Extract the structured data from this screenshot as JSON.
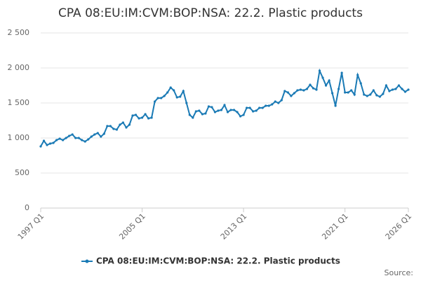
{
  "chart_data": {
    "type": "line",
    "title": "CPA 08:EU:IM:CVM:BOP:NSA: 22.2. Plastic products",
    "source": "Source:",
    "categories": [
      "1997 Q1",
      null,
      null,
      null,
      null,
      null,
      null,
      null,
      null,
      null,
      null,
      null,
      null,
      null,
      null,
      null,
      null,
      null,
      null,
      null,
      null,
      null,
      null,
      null,
      null,
      null,
      null,
      null,
      null,
      null,
      null,
      null,
      "2005 Q1",
      null,
      null,
      null,
      null,
      null,
      null,
      null,
      null,
      null,
      null,
      null,
      null,
      null,
      null,
      null,
      null,
      null,
      null,
      null,
      null,
      null,
      null,
      null,
      null,
      null,
      null,
      null,
      null,
      null,
      null,
      null,
      "2013 Q1",
      null,
      null,
      null,
      null,
      null,
      null,
      null,
      null,
      null,
      null,
      null,
      null,
      null,
      null,
      null,
      null,
      null,
      null,
      null,
      null,
      null,
      null,
      null,
      null,
      null,
      null,
      null,
      null,
      null,
      null,
      null,
      "2021 Q1",
      null,
      null,
      null,
      null,
      null,
      null,
      null,
      null,
      null,
      null,
      null,
      null,
      null,
      null,
      null,
      null,
      null,
      null,
      null,
      "2026 Q1"
    ],
    "series": [
      {
        "name": "CPA 08:EU:IM:CVM:BOP:NSA: 22.2. Plastic products",
        "color": "#1a7ab5",
        "values": [
          880,
          960,
          900,
          920,
          930,
          970,
          990,
          970,
          1000,
          1030,
          1050,
          1000,
          1000,
          970,
          950,
          980,
          1020,
          1050,
          1070,
          1020,
          1060,
          1170,
          1170,
          1130,
          1120,
          1190,
          1220,
          1150,
          1190,
          1320,
          1330,
          1280,
          1290,
          1340,
          1280,
          1290,
          1520,
          1570,
          1570,
          1600,
          1650,
          1720,
          1680,
          1580,
          1590,
          1670,
          1500,
          1330,
          1290,
          1380,
          1390,
          1340,
          1350,
          1450,
          1440,
          1370,
          1390,
          1400,
          1470,
          1370,
          1400,
          1400,
          1370,
          1310,
          1330,
          1430,
          1430,
          1380,
          1390,
          1430,
          1430,
          1460,
          1460,
          1480,
          1520,
          1500,
          1540,
          1670,
          1650,
          1600,
          1640,
          1680,
          1690,
          1680,
          1700,
          1760,
          1710,
          1690,
          1960,
          1860,
          1750,
          1820,
          1640,
          1460,
          1700,
          1930,
          1650,
          1650,
          1680,
          1620,
          1900,
          1780,
          1620,
          1600,
          1620,
          1680,
          1610,
          1590,
          1630,
          1750,
          1670,
          1690,
          1700,
          1750,
          1700,
          1660,
          1690
        ]
      }
    ],
    "ylim": [
      0,
      2500
    ],
    "yticks": [
      0,
      500,
      {
        "value": 1000,
        "label": "1 000"
      },
      {
        "value": 1500,
        "label": "1 500"
      },
      {
        "value": 2000,
        "label": "2 000"
      },
      {
        "value": 2500,
        "label": "2 500"
      }
    ],
    "grid": true,
    "legend": "bottom"
  }
}
